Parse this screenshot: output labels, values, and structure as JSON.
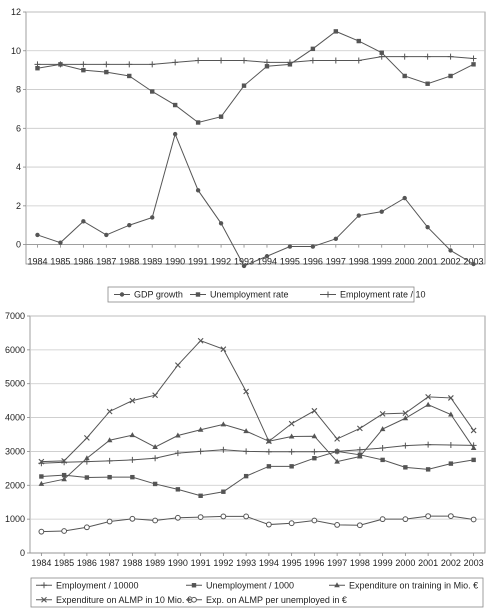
{
  "chart_data": [
    {
      "type": "line",
      "title": "",
      "xlabel": "",
      "ylabel": "",
      "x": [
        "1984",
        "1985",
        "1986",
        "1987",
        "1988",
        "1989",
        "1990",
        "1991",
        "1992",
        "1993",
        "1994",
        "1995",
        "1996",
        "1997",
        "1998",
        "1999",
        "2000",
        "2001",
        "2002",
        "2003"
      ],
      "ylim": [
        0,
        12
      ],
      "y_axis_min_drawn": -1,
      "yticks": [
        0,
        2,
        4,
        6,
        8,
        10,
        12
      ],
      "grid": "horizontal",
      "legend_position": "bottom",
      "series": [
        {
          "name": "GDP growth",
          "marker": "circle",
          "color": "#555555",
          "values": [
            0.5,
            0.1,
            1.2,
            0.5,
            1.0,
            1.4,
            5.7,
            2.8,
            1.1,
            -1.1,
            -0.6,
            -0.1,
            -0.1,
            0.3,
            1.5,
            1.7,
            2.4,
            0.9,
            -0.3,
            -1.0
          ]
        },
        {
          "name": "Unemployment rate",
          "marker": "square",
          "color": "#555555",
          "values": [
            9.1,
            9.3,
            9.0,
            8.9,
            8.7,
            7.9,
            7.2,
            6.3,
            6.6,
            8.2,
            9.2,
            9.3,
            10.1,
            11.0,
            10.5,
            9.9,
            8.7,
            8.3,
            8.7,
            9.3
          ]
        },
        {
          "name": "Employment rate / 10",
          "marker": "plus",
          "color": "#555555",
          "values": [
            9.3,
            9.3,
            9.3,
            9.3,
            9.3,
            9.3,
            9.4,
            9.5,
            9.5,
            9.5,
            9.4,
            9.4,
            9.5,
            9.5,
            9.5,
            9.7,
            9.7,
            9.7,
            9.7,
            9.6
          ]
        }
      ]
    },
    {
      "type": "line",
      "title": "",
      "xlabel": "",
      "ylabel": "",
      "x": [
        "1984",
        "1985",
        "1986",
        "1987",
        "1988",
        "1989",
        "1990",
        "1991",
        "1992",
        "1993",
        "1994",
        "1995",
        "1996",
        "1997",
        "1998",
        "1999",
        "2000",
        "2001",
        "2002",
        "2003"
      ],
      "ylim": [
        0,
        7000
      ],
      "yticks": [
        0,
        1000,
        2000,
        3000,
        4000,
        5000,
        6000,
        7000
      ],
      "grid": "horizontal",
      "legend_position": "bottom",
      "series": [
        {
          "name": "Employment / 10000",
          "marker": "plus",
          "color": "#555555",
          "values": [
            2650,
            2680,
            2700,
            2720,
            2750,
            2800,
            2950,
            3000,
            3050,
            3000,
            2990,
            2990,
            2990,
            3000,
            3050,
            3100,
            3170,
            3200,
            3190,
            3180
          ]
        },
        {
          "name": "Unemployment / 1000",
          "marker": "square",
          "color": "#555555",
          "values": [
            2260,
            2300,
            2230,
            2240,
            2240,
            2040,
            1880,
            1690,
            1810,
            2270,
            2560,
            2560,
            2800,
            3000,
            2900,
            2750,
            2530,
            2470,
            2640,
            2750
          ]
        },
        {
          "name": "Expenditure on training in Mio. €",
          "marker": "triangle",
          "color": "#555555",
          "values": [
            2040,
            2180,
            2800,
            3330,
            3480,
            3130,
            3470,
            3640,
            3800,
            3600,
            3300,
            3440,
            3450,
            2700,
            2850,
            3660,
            3980,
            4380,
            4090,
            3100
          ]
        },
        {
          "name": "Expenditure on ALMP in 10 Mio. €",
          "marker": "x",
          "color": "#555555",
          "values": [
            2700,
            2720,
            3400,
            4180,
            4500,
            4660,
            5550,
            6270,
            6020,
            4770,
            3300,
            3820,
            4200,
            3370,
            3680,
            4110,
            4130,
            4610,
            4580,
            3620
          ]
        },
        {
          "name": "Exp. on ALMP per unemployed in €",
          "marker": "circle-open",
          "color": "#555555",
          "values": [
            630,
            650,
            760,
            930,
            1010,
            960,
            1040,
            1060,
            1080,
            1080,
            840,
            880,
            960,
            830,
            820,
            1000,
            1000,
            1090,
            1090,
            990
          ]
        }
      ]
    }
  ]
}
